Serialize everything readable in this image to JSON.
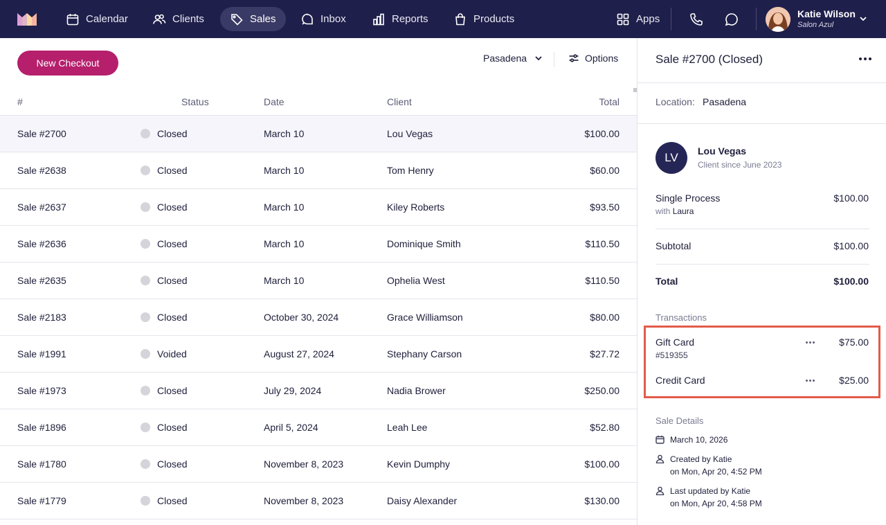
{
  "nav": {
    "items": [
      {
        "label": "Calendar",
        "icon": "calendar-icon"
      },
      {
        "label": "Clients",
        "icon": "users-icon"
      },
      {
        "label": "Sales",
        "icon": "tag-icon",
        "active": true
      },
      {
        "label": "Inbox",
        "icon": "chat-bubble-icon"
      },
      {
        "label": "Reports",
        "icon": "bar-chart-icon"
      },
      {
        "label": "Products",
        "icon": "shopping-bag-icon"
      }
    ],
    "apps_label": "Apps",
    "user": {
      "name": "Katie Wilson",
      "salon": "Salon Azul"
    },
    "brand_color": "#1f1f4b",
    "accent_color": "#b51f6c"
  },
  "list": {
    "new_checkout_label": "New Checkout",
    "location": "Pasadena",
    "options_label": "Options",
    "columns": {
      "number": "#",
      "status": "Status",
      "date": "Date",
      "client": "Client",
      "total": "Total"
    },
    "rows": [
      {
        "sale": "Sale #2700",
        "status": "Closed",
        "date": "March 10",
        "client": "Lou Vegas",
        "total": "$100.00"
      },
      {
        "sale": "Sale #2638",
        "status": "Closed",
        "date": "March 10",
        "client": "Tom Henry",
        "total": "$60.00"
      },
      {
        "sale": "Sale #2637",
        "status": "Closed",
        "date": "March 10",
        "client": "Kiley Roberts",
        "total": "$93.50"
      },
      {
        "sale": "Sale #2636",
        "status": "Closed",
        "date": "March 10",
        "client": "Dominique Smith",
        "total": "$110.50"
      },
      {
        "sale": "Sale #2635",
        "status": "Closed",
        "date": "March 10",
        "client": "Ophelia West",
        "total": "$110.50"
      },
      {
        "sale": "Sale #2183",
        "status": "Closed",
        "date": "October 30, 2024",
        "client": "Grace Williamson",
        "total": "$80.00"
      },
      {
        "sale": "Sale #1991",
        "status": "Voided",
        "date": "August 27, 2024",
        "client": "Stephany Carson",
        "total": "$27.72"
      },
      {
        "sale": "Sale #1973",
        "status": "Closed",
        "date": "July 29, 2024",
        "client": "Nadia Brower",
        "total": "$250.00"
      },
      {
        "sale": "Sale #1896",
        "status": "Closed",
        "date": "April 5, 2024",
        "client": "Leah Lee",
        "total": "$52.80"
      },
      {
        "sale": "Sale #1780",
        "status": "Closed",
        "date": "November 8, 2023",
        "client": "Kevin Dumphy",
        "total": "$100.00"
      },
      {
        "sale": "Sale #1779",
        "status": "Closed",
        "date": "November 8, 2023",
        "client": "Daisy Alexander",
        "total": "$130.00"
      }
    ]
  },
  "detail": {
    "title": "Sale #2700 (Closed)",
    "location_label": "Location:",
    "location_value": "Pasadena",
    "client": {
      "initials": "LV",
      "name": "Lou Vegas",
      "since": "Client since June 2023"
    },
    "item": {
      "name": "Single Process",
      "with_prefix": "with",
      "staff": "Laura",
      "price": "$100.00"
    },
    "subtotal_label": "Subtotal",
    "subtotal_value": "$100.00",
    "total_label": "Total",
    "total_value": "$100.00",
    "transactions_heading": "Transactions",
    "transactions": [
      {
        "name": "Gift Card",
        "sub": "#519355",
        "amount": "$75.00"
      },
      {
        "name": "Credit Card",
        "sub": "",
        "amount": "$25.00"
      }
    ],
    "details_heading": "Sale Details",
    "details": {
      "date": "March 10, 2026",
      "created_by": "Created by Katie",
      "created_on": "on Mon, Apr 20, 4:52 PM",
      "updated_by": "Last updated by Katie",
      "updated_on": "on Mon, Apr 20, 4:58 PM"
    },
    "highlight_color": "#e35b4a"
  }
}
